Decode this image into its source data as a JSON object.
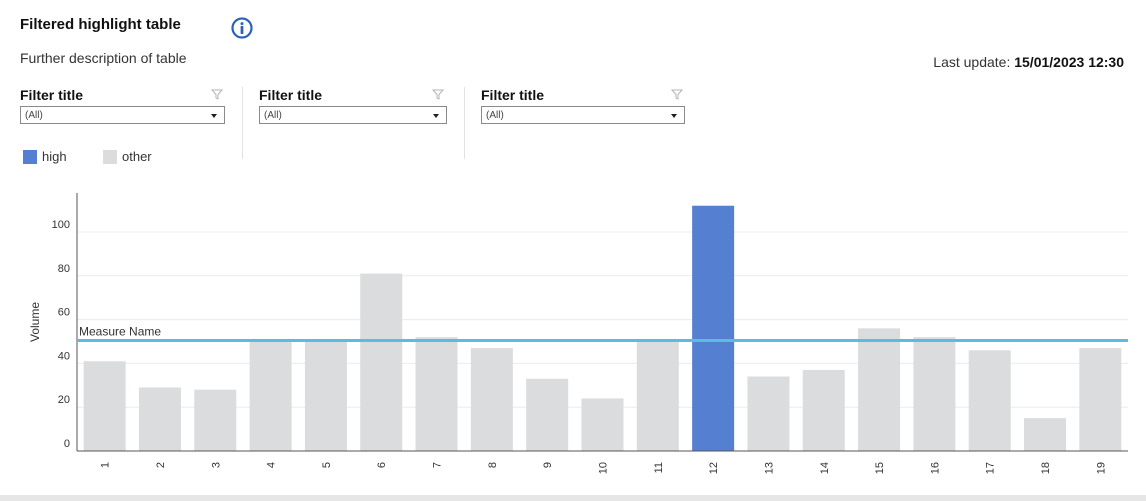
{
  "header": {
    "title": "Filtered highlight table",
    "subtitle": "Further description of table",
    "last_update_label": "Last update:",
    "last_update_value": "15/01/2023 12:30"
  },
  "filters": [
    {
      "title": "Filter title",
      "value": "(All)"
    },
    {
      "title": "Filter title",
      "value": "(All)"
    },
    {
      "title": "Filter title",
      "value": "(All)"
    }
  ],
  "legend": [
    {
      "label": "high",
      "color": "#5580d2"
    },
    {
      "label": "other",
      "color": "#dadcde"
    }
  ],
  "chart_data": {
    "type": "bar",
    "categories": [
      "1",
      "2",
      "3",
      "4",
      "5",
      "6",
      "7",
      "8",
      "9",
      "10",
      "11",
      "12",
      "13",
      "14",
      "15",
      "16",
      "17",
      "18",
      "19"
    ],
    "values": [
      41,
      29,
      28,
      50,
      50,
      81,
      52,
      47,
      33,
      24,
      50,
      112,
      34,
      37,
      56,
      52,
      46,
      15,
      47
    ],
    "highlight": [
      false,
      false,
      false,
      false,
      false,
      false,
      false,
      false,
      false,
      false,
      false,
      true,
      false,
      false,
      false,
      false,
      false,
      false,
      false
    ],
    "ylabel": "Volume",
    "xlabel": "",
    "yticks": [
      0,
      20,
      40,
      60,
      80,
      100
    ],
    "ylim": [
      0,
      118
    ],
    "reference_line": {
      "label": "Measure Name",
      "value": 50,
      "color": "#5bbce0"
    },
    "bar_colors": {
      "high": "#5580d2",
      "other": "#dadcde"
    },
    "grid": true
  }
}
